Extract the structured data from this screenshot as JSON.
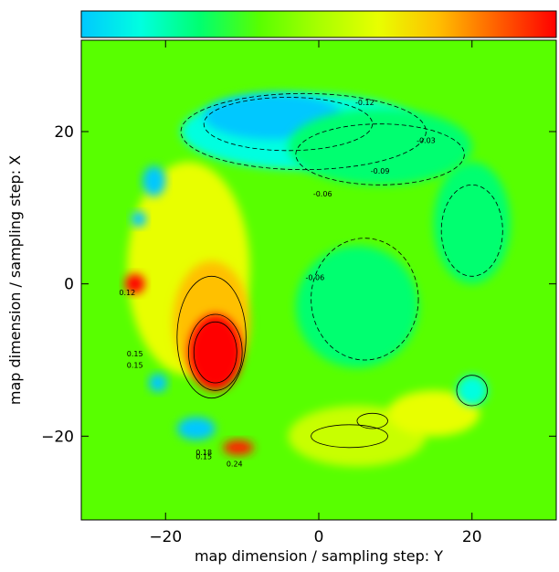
{
  "chart_data": {
    "type": "heatmap",
    "xlabel": "map dimension / sampling step: Y",
    "ylabel": "map dimension / sampling step: X",
    "xlim": [
      -31,
      31
    ],
    "ylim": [
      -31,
      32
    ],
    "xticks": [
      -20,
      0,
      20
    ],
    "yticks": [
      -20,
      0,
      20
    ],
    "colorscale": [
      "#00c8ff",
      "#00ffe0",
      "#00ff70",
      "#58ff00",
      "#a8ff00",
      "#e8ff00",
      "#ffc000",
      "#ff6000",
      "#ff0000"
    ],
    "background_color": "#58ff00",
    "features": [
      {
        "type": "circle_mask",
        "cx": 0,
        "cy": 0,
        "r": 25,
        "fill": "#58ff00"
      },
      {
        "type": "blob",
        "name": "upper-cyan-region",
        "cx": -2,
        "cy": 20,
        "rx": 16,
        "ry": 5,
        "fill": "#00ffe0"
      },
      {
        "type": "blob",
        "name": "upper-blue-region",
        "cx": -6,
        "cy": 22,
        "rx": 9,
        "ry": 3,
        "fill": "#00c8ff"
      },
      {
        "type": "blob",
        "name": "upper-right-cyan-region",
        "cx": 8,
        "cy": 18,
        "rx": 12,
        "ry": 5,
        "fill": "#00ff70"
      },
      {
        "type": "blob",
        "name": "right-cyan-patch",
        "cx": 20,
        "cy": 8,
        "rx": 5,
        "ry": 8,
        "fill": "#00ff70"
      },
      {
        "type": "blob",
        "name": "left-yellow-region",
        "cx": -17,
        "cy": 2,
        "rx": 8,
        "ry": 14,
        "fill": "#e8ff00"
      },
      {
        "type": "blob",
        "name": "left-orange-region",
        "cx": -14,
        "cy": -5,
        "rx": 5,
        "ry": 8,
        "fill": "#ffc000"
      },
      {
        "type": "blob",
        "name": "red-peak-region",
        "cx": -13.5,
        "cy": -9,
        "rx": 3.5,
        "ry": 5,
        "fill": "#ff0000"
      },
      {
        "type": "blob",
        "name": "lower-yellow-region",
        "cx": 5,
        "cy": -20,
        "rx": 9,
        "ry": 4,
        "fill": "#c8ff00"
      },
      {
        "type": "blob",
        "name": "lower-right-yellow-region",
        "cx": 15,
        "cy": -17,
        "rx": 6,
        "ry": 3,
        "fill": "#e8ff00"
      },
      {
        "type": "blob",
        "name": "center-cyan-region",
        "cx": 5,
        "cy": -3,
        "rx": 8,
        "ry": 8,
        "fill": "#00ff70"
      },
      {
        "type": "blob",
        "name": "right-lower-cyan-spot",
        "cx": 20,
        "cy": -14,
        "rx": 2,
        "ry": 2,
        "fill": "#00ffe0"
      },
      {
        "type": "blob",
        "name": "edge-red-spot",
        "cx": -24,
        "cy": 0,
        "rx": 1.3,
        "ry": 1.3,
        "fill": "#ff0000"
      },
      {
        "type": "blob",
        "name": "bottom-red-spot",
        "cx": -10.5,
        "cy": -21.5,
        "rx": 2,
        "ry": 1,
        "fill": "#ff2000"
      },
      {
        "type": "blob",
        "name": "left-edge-blue-spot",
        "cx": -21.5,
        "cy": 13.5,
        "rx": 1.5,
        "ry": 2,
        "fill": "#00c8ff"
      },
      {
        "type": "blob",
        "name": "left-edge-blue-spot-2",
        "cx": -23.5,
        "cy": 8.5,
        "rx": 1,
        "ry": 1,
        "fill": "#00c8ff"
      },
      {
        "type": "blob",
        "name": "lower-left-blue-spot",
        "cx": -16,
        "cy": -19,
        "rx": 2.5,
        "ry": 1.5,
        "fill": "#00c8ff"
      },
      {
        "type": "blob",
        "name": "left-lower-blue-spot",
        "cx": -21,
        "cy": -13,
        "rx": 1.2,
        "ry": 1.2,
        "fill": "#00c8ff"
      }
    ],
    "contours": [
      {
        "cx": -14,
        "cy": -7,
        "rx": 4.5,
        "ry": 8,
        "style": "solid"
      },
      {
        "cx": -13.5,
        "cy": -9,
        "rx": 3.5,
        "ry": 5,
        "style": "solid"
      },
      {
        "cx": -13.5,
        "cy": -9,
        "rx": 2.8,
        "ry": 4,
        "style": "solid"
      },
      {
        "cx": -2,
        "cy": 20,
        "rx": 16,
        "ry": 5,
        "style": "dashed"
      },
      {
        "cx": -4,
        "cy": 21,
        "rx": 11,
        "ry": 3.5,
        "style": "dashed"
      },
      {
        "cx": 8,
        "cy": 17,
        "rx": 11,
        "ry": 4,
        "style": "dashed"
      },
      {
        "cx": 6,
        "cy": -2,
        "rx": 7,
        "ry": 8,
        "style": "dashed"
      },
      {
        "cx": 20,
        "cy": 7,
        "rx": 4,
        "ry": 6,
        "style": "dashed"
      },
      {
        "cx": 4,
        "cy": -20,
        "rx": 5,
        "ry": 1.5,
        "style": "solid"
      },
      {
        "cx": 20,
        "cy": -14,
        "rx": 2,
        "ry": 2,
        "style": "solid"
      },
      {
        "cx": 7,
        "cy": -18,
        "rx": 2,
        "ry": 1,
        "style": "solid"
      }
    ],
    "contour_labels": [
      {
        "text": "-0.12",
        "x": 6,
        "y": 23.5
      },
      {
        "text": "-0.03",
        "x": 14,
        "y": 18.5
      },
      {
        "text": "-0.06",
        "x": 0.5,
        "y": 11.5
      },
      {
        "text": "-0.06",
        "x": -0.5,
        "y": 0.5
      },
      {
        "text": "-0.09",
        "x": 8,
        "y": 14.5
      },
      {
        "text": "0.12",
        "x": -25,
        "y": -1.5
      },
      {
        "text": "0.15",
        "x": -24,
        "y": -9.5
      },
      {
        "text": "0.15",
        "x": -24,
        "y": -11
      },
      {
        "text": "0.18",
        "x": -15,
        "y": -22.5
      },
      {
        "text": "0.15",
        "x": -15,
        "y": -23
      },
      {
        "text": "0.24",
        "x": -11,
        "y": -24
      }
    ]
  }
}
